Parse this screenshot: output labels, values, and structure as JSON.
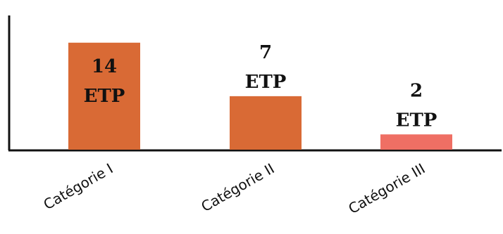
{
  "chart_data": {
    "type": "bar",
    "categories": [
      "Catégorie I",
      "Catégorie II",
      "Catégorie III"
    ],
    "values": [
      14,
      7,
      2
    ],
    "value_unit": "ETP",
    "ylim": [
      0,
      16
    ],
    "grid": false,
    "bar_colors": [
      "#d96a35",
      "#d96a35",
      "#ef6f64"
    ],
    "title": "",
    "xlabel": "",
    "ylabel": ""
  }
}
